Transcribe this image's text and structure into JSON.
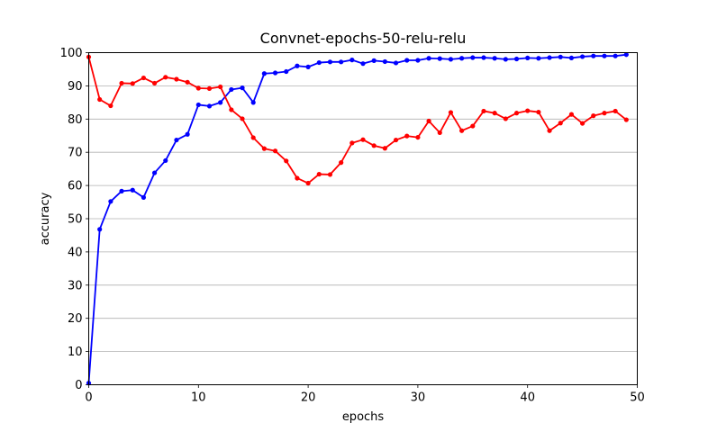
{
  "chart_data": {
    "type": "line",
    "title": "Convnet-epochs-50-relu-relu",
    "xlabel": "epochs",
    "ylabel": "accuracy",
    "xlim": [
      0,
      50
    ],
    "ylim": [
      0,
      100
    ],
    "xticks": [
      0,
      10,
      20,
      30,
      40,
      50
    ],
    "yticks": [
      0,
      10,
      20,
      30,
      40,
      50,
      60,
      70,
      80,
      90,
      100
    ],
    "grid": "horizontal",
    "x": [
      0,
      1,
      2,
      3,
      4,
      5,
      6,
      7,
      8,
      9,
      10,
      11,
      12,
      13,
      14,
      15,
      16,
      17,
      18,
      19,
      20,
      21,
      22,
      23,
      24,
      25,
      26,
      27,
      28,
      29,
      30,
      31,
      32,
      33,
      34,
      35,
      36,
      37,
      38,
      39,
      40,
      41,
      42,
      43,
      44,
      45,
      46,
      47,
      48,
      49
    ],
    "series": [
      {
        "color": "#0000ff",
        "values": [
          0.5,
          46.8,
          55.2,
          58.3,
          58.6,
          56.4,
          63.8,
          67.5,
          73.7,
          75.4,
          84.3,
          83.9,
          85.0,
          88.9,
          89.4,
          85.0,
          93.7,
          93.9,
          94.3,
          96.0,
          95.7,
          97.0,
          97.2,
          97.2,
          97.8,
          96.7,
          97.6,
          97.3,
          96.9,
          97.7,
          97.7,
          98.3,
          98.2,
          98.0,
          98.3,
          98.5,
          98.5,
          98.3,
          98.0,
          98.1,
          98.4,
          98.3,
          98.5,
          98.7,
          98.4,
          98.8,
          99.0,
          99.0,
          99.0,
          99.4
        ]
      },
      {
        "color": "#ff0000",
        "values": [
          98.7,
          85.9,
          84.0,
          90.8,
          90.7,
          92.4,
          90.8,
          92.6,
          92.0,
          91.1,
          89.3,
          89.2,
          89.7,
          82.8,
          80.1,
          74.4,
          71.1,
          70.4,
          67.4,
          62.2,
          60.7,
          63.4,
          63.3,
          66.9,
          72.8,
          73.8,
          72.0,
          71.2,
          73.7,
          74.9,
          74.5,
          79.4,
          75.9,
          82.0,
          76.5,
          77.9,
          82.4,
          81.8,
          80.1,
          81.8,
          82.5,
          82.1,
          76.5,
          78.8,
          81.4,
          78.7,
          81.0,
          81.8,
          82.4,
          79.8
        ]
      }
    ]
  }
}
